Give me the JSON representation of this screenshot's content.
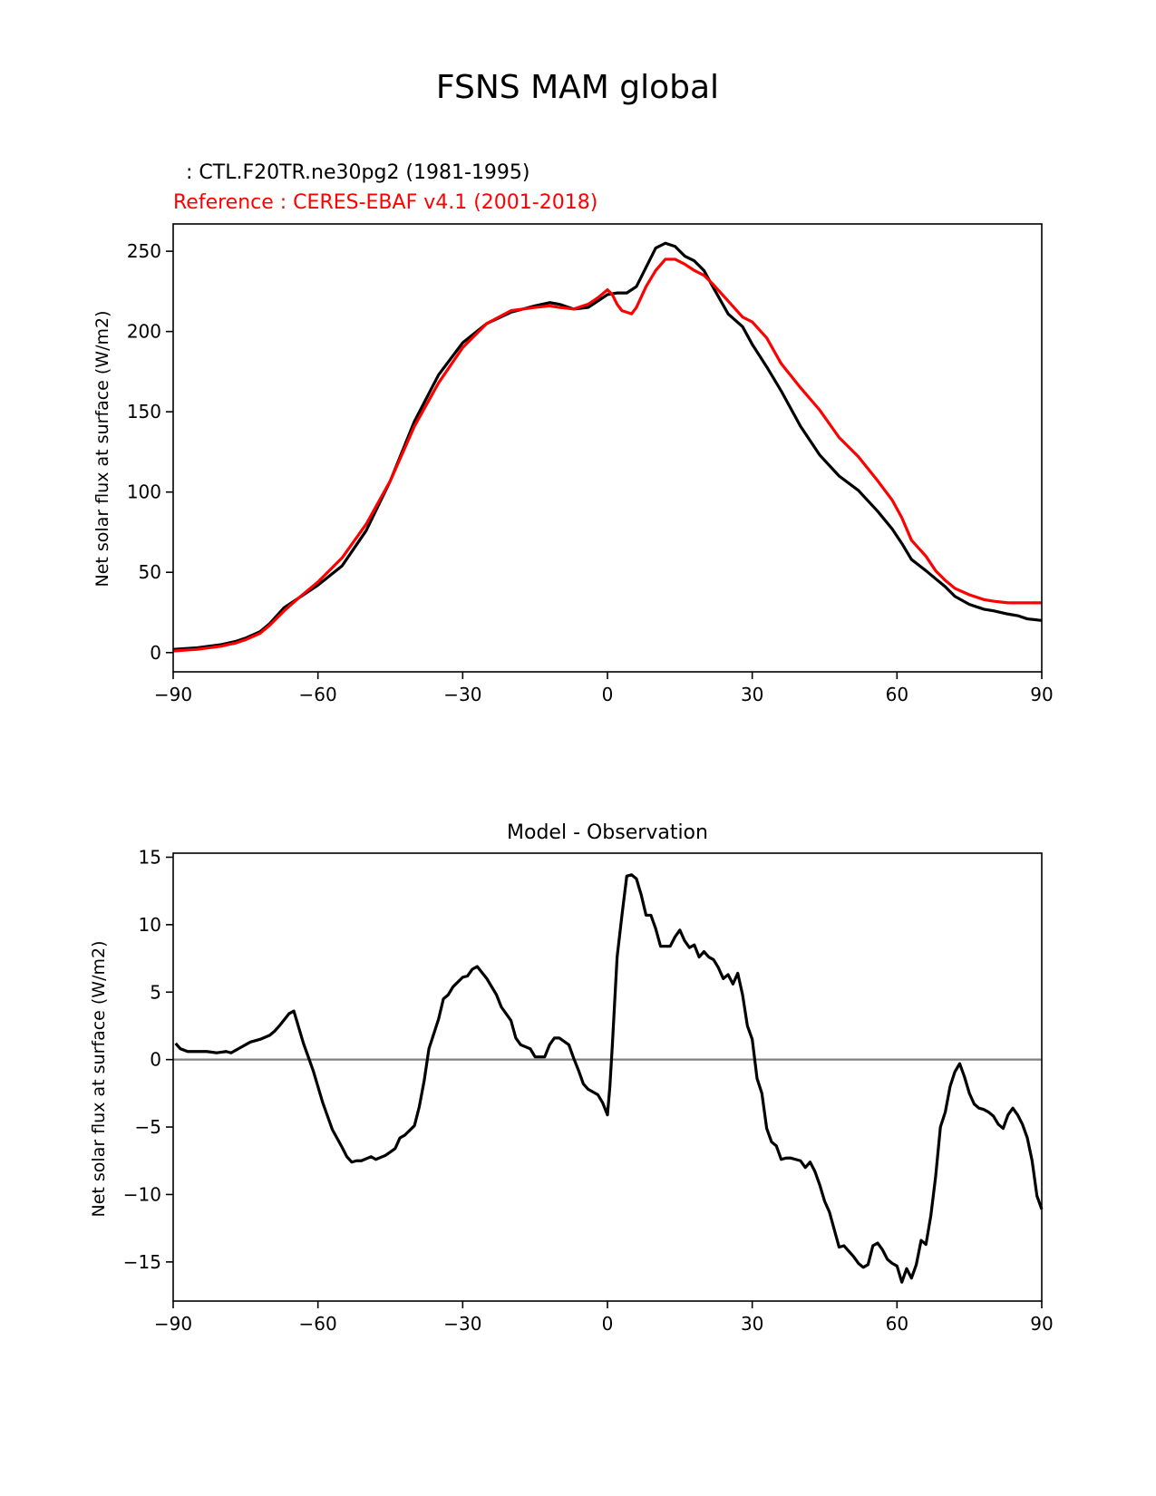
{
  "figure": {
    "title": "FSNS MAM global"
  },
  "chart_data": [
    {
      "type": "line",
      "subtitle_test": ": CTL.F20TR.ne30pg2 (1981-1995)",
      "subtitle_reference": "Reference : CERES-EBAF v4.1 (2001-2018)",
      "xlabel": "",
      "ylabel": "Net solar flux at surface (W/m2)",
      "xlim": [
        -90,
        90
      ],
      "ylim": [
        -12,
        267
      ],
      "xticks": [
        "−90",
        "−60",
        "−30",
        "0",
        "30",
        "60",
        "90"
      ],
      "xtick_values": [
        -90,
        -60,
        -30,
        0,
        30,
        60,
        90
      ],
      "yticks": [
        "0",
        "50",
        "100",
        "150",
        "200",
        "250"
      ],
      "ytick_values": [
        0,
        50,
        100,
        150,
        200,
        250
      ],
      "series": [
        {
          "color": "#000000",
          "x": [
            -90,
            -85,
            -80,
            -77,
            -75,
            -72,
            -70,
            -67,
            -64,
            -60,
            -55,
            -50,
            -45,
            -40,
            -35,
            -30,
            -25,
            -20,
            -15,
            -12,
            -10,
            -7,
            -4,
            -2,
            0,
            2,
            4,
            6,
            8,
            10,
            12,
            14,
            16,
            18,
            20,
            22,
            25,
            28,
            30,
            33,
            36,
            40,
            44,
            48,
            52,
            56,
            59,
            61,
            63,
            66,
            68,
            70,
            72,
            75,
            78,
            80,
            83,
            85,
            87,
            90
          ],
          "y": [
            2,
            3,
            5,
            7,
            9,
            13,
            18,
            28,
            34,
            42,
            54,
            76,
            107,
            144,
            173,
            193,
            205,
            212,
            216,
            218,
            217,
            214,
            215,
            219,
            223,
            224,
            224,
            228,
            240,
            252,
            255,
            253,
            247,
            244,
            238,
            227,
            211,
            203,
            192,
            178,
            163,
            141,
            123,
            110,
            101,
            88,
            77,
            68,
            58,
            51,
            46,
            41,
            35,
            30,
            27,
            26,
            24,
            23,
            21,
            20
          ]
        },
        {
          "color": "#ff0000",
          "x": [
            -90,
            -85,
            -80,
            -77,
            -75,
            -72,
            -70,
            -67,
            -64,
            -60,
            -55,
            -50,
            -45,
            -40,
            -35,
            -30,
            -25,
            -20,
            -15,
            -12,
            -10,
            -7,
            -4,
            -2,
            0,
            1,
            2,
            3,
            5,
            6,
            8,
            10,
            12,
            14,
            16,
            18,
            20,
            22,
            25,
            28,
            30,
            33,
            36,
            40,
            44,
            48,
            52,
            56,
            59,
            61,
            63,
            66,
            68,
            70,
            72,
            75,
            78,
            80,
            83,
            85,
            87,
            90
          ],
          "y": [
            1,
            2,
            4,
            6,
            8,
            12,
            17,
            26,
            34,
            44,
            59,
            80,
            107,
            141,
            168,
            190,
            205,
            213,
            215,
            216,
            215,
            214,
            217,
            221,
            226,
            223,
            217,
            213,
            211,
            215,
            228,
            238,
            245,
            245,
            242,
            238,
            235,
            229,
            219,
            209,
            206,
            196,
            180,
            165,
            151,
            134,
            122,
            107,
            95,
            84,
            70,
            60,
            51,
            45,
            40,
            36,
            33,
            32,
            31,
            31,
            31,
            31
          ]
        }
      ]
    },
    {
      "type": "line",
      "title": "Model - Observation",
      "xlabel": "",
      "ylabel": "Net solar flux at surface (W/m2)",
      "xlim": [
        -90,
        90
      ],
      "ylim": [
        -17.9,
        15.3
      ],
      "xticks": [
        "−90",
        "−60",
        "−30",
        "0",
        "30",
        "60",
        "90"
      ],
      "xtick_values": [
        -90,
        -60,
        -30,
        0,
        30,
        60,
        90
      ],
      "yticks": [
        "15",
        "10",
        "5",
        "0",
        "−5",
        "−10",
        "−15"
      ],
      "ytick_values": [
        15,
        10,
        5,
        0,
        -5,
        -10,
        -15
      ],
      "zero_line": 0,
      "series": [
        {
          "color": "#000000",
          "x": [
            -89.5,
            -88.5,
            -87,
            -85,
            -83,
            -81,
            -79,
            -78,
            -76,
            -74,
            -72,
            -70,
            -69,
            -68,
            -66,
            -65,
            -63,
            -61,
            -59,
            -57,
            -55,
            -54,
            -53,
            -52,
            -51,
            -49,
            -48,
            -46,
            -44,
            -43,
            -42,
            -40,
            -39,
            -38,
            -37,
            -35,
            -34,
            -33,
            -32,
            -30,
            -29,
            -28,
            -27,
            -25,
            -23,
            -22,
            -20,
            -19,
            -18,
            -16,
            -15,
            -13,
            -12,
            -11,
            -10,
            -8,
            -7,
            -6,
            -5,
            -4,
            -2,
            -1,
            0,
            0.5,
            1,
            2,
            3,
            4,
            5,
            6,
            7,
            8,
            9,
            10,
            11,
            12,
            13,
            14,
            15,
            16,
            17,
            18,
            19,
            20,
            21,
            22,
            23,
            24,
            25,
            26,
            27,
            28,
            29,
            30,
            31,
            32,
            33,
            34,
            35,
            36,
            37,
            38,
            39,
            40,
            41,
            42,
            43,
            44,
            45,
            46,
            47,
            48,
            49,
            50,
            51,
            52,
            53,
            54,
            55,
            56,
            57,
            58,
            59,
            60,
            61,
            62,
            63,
            64,
            65,
            66,
            67,
            68,
            69,
            70,
            71,
            72,
            73,
            74,
            75,
            76,
            77,
            78,
            79,
            80,
            81,
            82,
            83,
            84,
            85,
            86,
            87,
            88,
            89,
            90
          ],
          "y": [
            1.2,
            0.8,
            0.6,
            0.6,
            0.6,
            0.5,
            0.6,
            0.5,
            0.9,
            1.3,
            1.5,
            1.8,
            2.1,
            2.5,
            3.4,
            3.6,
            1.2,
            -0.8,
            -3.2,
            -5.2,
            -6.5,
            -7.2,
            -7.6,
            -7.5,
            -7.5,
            -7.2,
            -7.4,
            -7.1,
            -6.6,
            -5.8,
            -5.6,
            -4.9,
            -3.5,
            -1.6,
            0.8,
            3.0,
            4.5,
            4.8,
            5.4,
            6.1,
            6.2,
            6.7,
            6.9,
            6.0,
            4.8,
            3.9,
            2.9,
            1.6,
            1.1,
            0.8,
            0.2,
            0.2,
            1.1,
            1.6,
            1.6,
            1.1,
            0.1,
            -0.8,
            -1.8,
            -2.2,
            -2.6,
            -3.2,
            -4.1,
            -2.0,
            1.0,
            7.6,
            10.7,
            13.6,
            13.7,
            13.4,
            12.2,
            10.7,
            10.7,
            9.7,
            8.4,
            8.4,
            8.4,
            9.1,
            9.6,
            8.8,
            8.3,
            8.5,
            7.6,
            8.0,
            7.6,
            7.4,
            6.8,
            6.0,
            6.3,
            5.6,
            6.4,
            4.8,
            2.5,
            1.5,
            -1.4,
            -2.5,
            -5.1,
            -6.1,
            -6.4,
            -7.4,
            -7.3,
            -7.3,
            -7.4,
            -7.5,
            -8.0,
            -7.6,
            -8.3,
            -9.3,
            -10.5,
            -11.3,
            -12.6,
            -13.9,
            -13.8,
            -14.2,
            -14.6,
            -15.1,
            -15.4,
            -15.2,
            -13.8,
            -13.6,
            -14.1,
            -14.8,
            -15.1,
            -15.3,
            -16.5,
            -15.5,
            -16.2,
            -15.2,
            -13.4,
            -13.7,
            -11.6,
            -8.7,
            -5.0,
            -3.9,
            -2.0,
            -0.9,
            -0.3,
            -1.3,
            -2.5,
            -3.3,
            -3.6,
            -3.7,
            -3.9,
            -4.2,
            -4.8,
            -5.1,
            -4.1,
            -3.6,
            -4.1,
            -4.8,
            -5.8,
            -7.5,
            -10.1,
            -11.1
          ]
        }
      ]
    }
  ]
}
